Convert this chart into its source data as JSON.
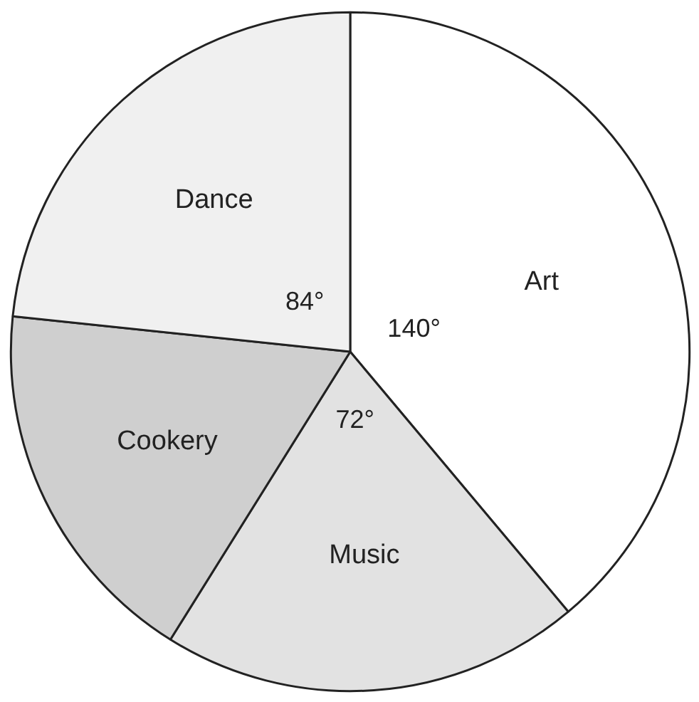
{
  "chart_data": {
    "type": "pie",
    "categories": [
      "Art",
      "Music",
      "Cookery",
      "Dance"
    ],
    "values": [
      140,
      72,
      64,
      84
    ],
    "colors": [
      "#ffffff",
      "#e2e2e2",
      "#cfcfcf",
      "#f0f0f0"
    ],
    "value_labels": [
      "140°",
      "72°",
      null,
      "84°"
    ]
  }
}
